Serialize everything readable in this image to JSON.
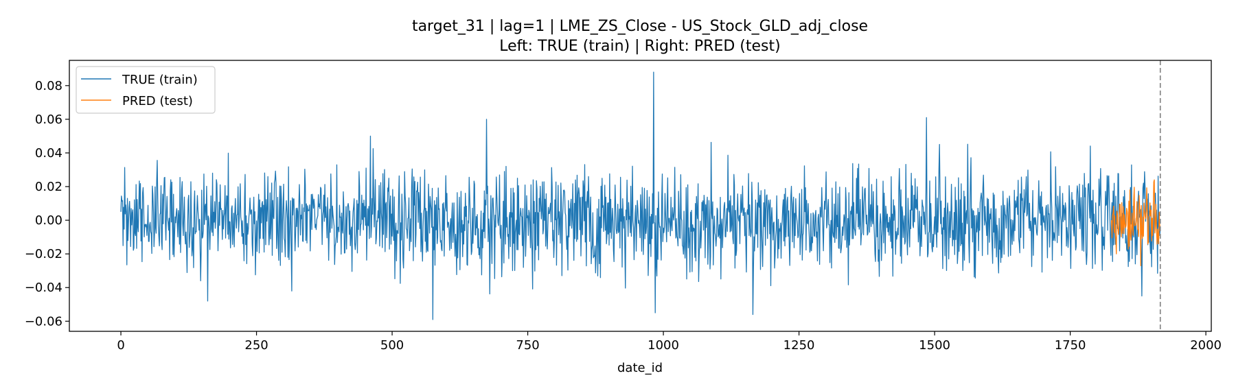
{
  "chart_data": {
    "type": "line",
    "title": "target_31 | lag=1 | LME_ZS_Close - US_Stock_GLD_adj_close",
    "subtitle": "Left: TRUE (train) | Right: PRED (test)",
    "xlabel": "date_id",
    "ylabel": "",
    "xlim": [
      -95,
      2010
    ],
    "ylim": [
      -0.066,
      0.095
    ],
    "xticks": [
      0,
      250,
      500,
      750,
      1000,
      1250,
      1500,
      1750,
      2000
    ],
    "xtick_labels": [
      "0",
      "250",
      "500",
      "750",
      "1000",
      "1250",
      "1500",
      "1750",
      "2000"
    ],
    "yticks": [
      -0.06,
      -0.04,
      -0.02,
      0.0,
      0.02,
      0.04,
      0.06,
      0.08
    ],
    "ytick_labels": [
      "−0.06",
      "−0.04",
      "−0.02",
      "0.00",
      "0.02",
      "0.04",
      "0.06",
      "0.08"
    ],
    "vline_x": 1916,
    "grid": false,
    "legend_position": "top-left",
    "series": [
      {
        "name": "TRUE (train)",
        "color": "#1f77b4",
        "x_range": [
          0,
          1916
        ],
        "sample_points": [
          [
            0,
            0.005
          ],
          [
            160,
            -0.048
          ],
          [
            460,
            0.05
          ],
          [
            575,
            -0.059
          ],
          [
            674,
            0.06
          ],
          [
            982,
            0.088
          ],
          [
            985,
            -0.055
          ],
          [
            1165,
            -0.056
          ],
          [
            1485,
            0.061
          ],
          [
            1882,
            -0.045
          ],
          [
            1916,
            -0.005
          ]
        ]
      },
      {
        "name": "PRED (test)",
        "color": "#ff7f0e",
        "x_range": [
          1826,
          1916
        ],
        "sample_points": [
          [
            1826,
            0.0
          ],
          [
            1835,
            -0.02
          ],
          [
            1860,
            0.018
          ],
          [
            1880,
            -0.027
          ],
          [
            1905,
            0.024
          ],
          [
            1916,
            -0.005
          ]
        ]
      }
    ]
  }
}
